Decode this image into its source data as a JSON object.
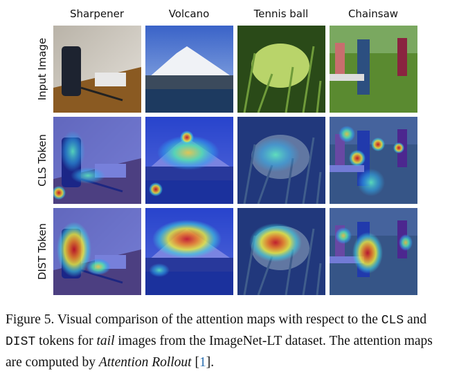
{
  "figure": {
    "columns": [
      "Sharpener",
      "Volcano",
      "Tennis ball",
      "Chainsaw"
    ],
    "rows": [
      "Input Image",
      "CLS Token",
      "DIST Token"
    ]
  },
  "caption": {
    "parts": [
      "Figure 5. Visual comparison of the attention maps with respect to the ",
      "CLS",
      " and ",
      "DIST",
      " tokens for ",
      "tail",
      " images from the ImageNet-LT dataset. The attention maps are computed by ",
      "Attention Rollout",
      " [",
      "1",
      "]."
    ]
  }
}
